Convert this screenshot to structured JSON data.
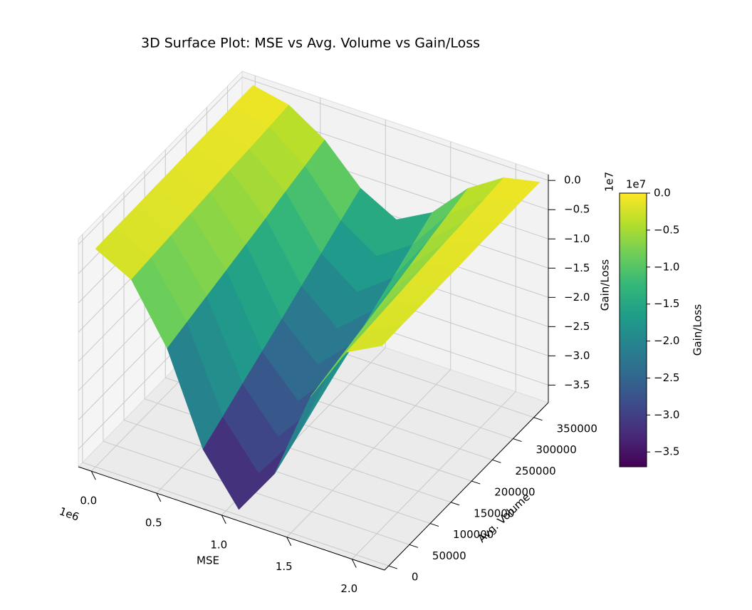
{
  "chart_data": {
    "type": "surface3d",
    "title": "3D Surface Plot: MSE vs Avg. Volume vs Gain/Loss",
    "xlabel": "MSE",
    "ylabel": "Avg. Volume",
    "zlabel": "Gain/Loss",
    "x_offset_label": "1e6",
    "z_offset_label": "1e7",
    "colormap": "viridis",
    "xlim": [
      -0.1,
      2.25
    ],
    "ylim": [
      -10000,
      385000
    ],
    "zlim": [
      -3.8,
      0.1
    ],
    "xticks": [
      {
        "value": 0,
        "label": "0.0"
      },
      0.5,
      {
        "value": 1,
        "label": "1.0"
      },
      1.5,
      {
        "value": 2,
        "label": "2.0"
      }
    ],
    "yticks": [
      0,
      50000,
      100000,
      150000,
      200000,
      250000,
      300000,
      350000
    ],
    "zticks": [
      {
        "value": 0,
        "label": "0.0"
      },
      {
        "value": -0.5,
        "label": "−0.5"
      },
      {
        "value": -1,
        "label": "−1.0"
      },
      {
        "value": -1.5,
        "label": "−1.5"
      },
      {
        "value": -2,
        "label": "−2.0"
      },
      {
        "value": -2.5,
        "label": "−2.5"
      },
      {
        "value": -3,
        "label": "−3.0"
      },
      {
        "value": -3.5,
        "label": "−3.5"
      }
    ],
    "x": [
      0,
      0.275,
      0.55,
      0.825,
      1.1,
      1.375,
      1.65,
      1.925,
      2.2
    ],
    "y": [
      0,
      47500,
      95000,
      142500,
      190000,
      237500,
      285000,
      332500,
      380000
    ],
    "z": [
      [
        -0.07,
        -0.39,
        -1.36,
        -2.88,
        -3.7,
        -2.88,
        -1.36,
        -0.39,
        -0.07
      ],
      [
        -0.06,
        -0.36,
        -1.26,
        -2.67,
        -3.43,
        -2.67,
        -1.26,
        -0.36,
        -0.06
      ],
      [
        -0.06,
        -0.33,
        -1.16,
        -2.45,
        -3.15,
        -2.45,
        -1.16,
        -0.33,
        -0.06
      ],
      [
        -0.05,
        -0.3,
        -1.06,
        -2.24,
        -2.88,
        -2.24,
        -1.06,
        -0.3,
        -0.05
      ],
      [
        -0.05,
        -0.27,
        -0.96,
        -2.03,
        -2.6,
        -2.03,
        -0.96,
        -0.27,
        -0.05
      ],
      [
        -0.04,
        -0.24,
        -0.86,
        -1.81,
        -2.33,
        -1.81,
        -0.86,
        -0.24,
        -0.04
      ],
      [
        -0.04,
        -0.22,
        -0.75,
        -1.6,
        -2.05,
        -1.6,
        -0.75,
        -0.22,
        -0.04
      ],
      [
        -0.03,
        -0.19,
        -0.65,
        -1.38,
        -1.78,
        -1.38,
        -0.65,
        -0.19,
        -0.03
      ],
      [
        -0.03,
        -0.16,
        -0.55,
        -1.17,
        -1.5,
        -1.17,
        -0.55,
        -0.16,
        -0.03
      ]
    ],
    "colorbar": {
      "label": "Gain/Loss",
      "offset_label": "1e7",
      "lim": [
        -3.7,
        0
      ],
      "ticks": [
        {
          "value": 0,
          "label": "0.0"
        },
        {
          "value": -0.5,
          "label": "−0.5"
        },
        {
          "value": -1,
          "label": "−1.0"
        },
        {
          "value": -1.5,
          "label": "−1.5"
        },
        {
          "value": -2,
          "label": "−2.0"
        },
        {
          "value": -2.5,
          "label": "−2.5"
        },
        {
          "value": -3,
          "label": "−3.0"
        },
        {
          "value": -3.5,
          "label": "−3.5"
        }
      ]
    }
  }
}
